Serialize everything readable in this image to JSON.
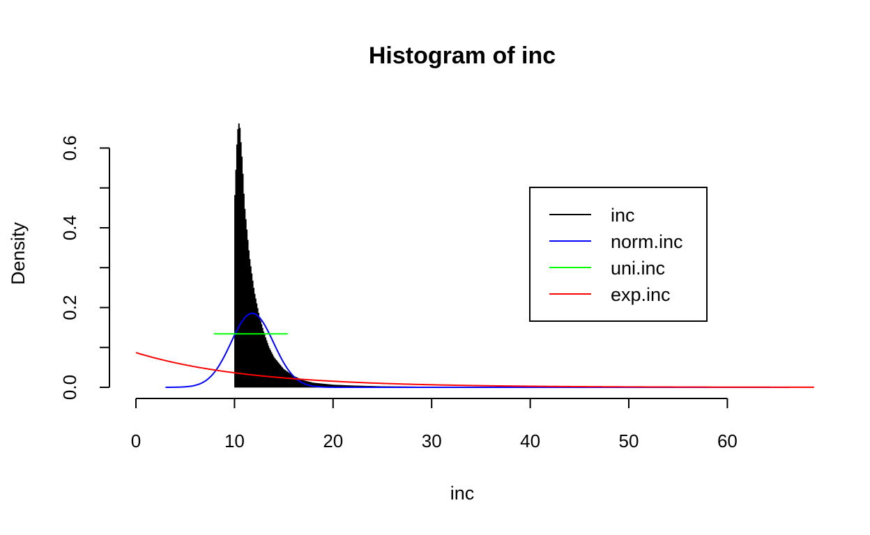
{
  "chart_data": {
    "type": "histogram",
    "title": "Histogram of inc",
    "xlabel": "inc",
    "ylabel": "Density",
    "xlim": [
      0,
      69
    ],
    "ylim": [
      0,
      0.67
    ],
    "x_ticks": [
      0,
      10,
      20,
      30,
      40,
      50,
      60
    ],
    "x_tick_labels": [
      "0",
      "10",
      "20",
      "30",
      "40",
      "50",
      "60"
    ],
    "y_ticks": [
      0,
      0.1,
      0.2,
      0.3,
      0.4,
      0.5,
      0.6
    ],
    "y_tick_labels": [
      "0.0",
      "",
      "0.2",
      "",
      "0.4",
      "",
      "0.6"
    ],
    "grid": false,
    "histogram": {
      "name": "inc",
      "color": "#000000",
      "bin_width": 0.1,
      "x_min": 10.0,
      "x_max": 66.3,
      "peak_x": 10.5,
      "peak_density": 0.668,
      "profile_x": [
        10.0,
        10.3,
        10.5,
        10.8,
        11.0,
        11.5,
        12.0,
        12.5,
        13.0,
        13.5,
        14.0,
        15.0,
        16.0,
        17.0,
        18.0,
        20.0,
        22.0,
        25.0,
        30.0,
        40.0,
        66.3
      ],
      "profile_density": [
        0.45,
        0.64,
        0.668,
        0.56,
        0.46,
        0.33,
        0.24,
        0.18,
        0.135,
        0.1,
        0.075,
        0.045,
        0.028,
        0.017,
        0.011,
        0.006,
        0.004,
        0.002,
        0.001,
        0.0005,
        0.0
      ]
    },
    "series": [
      {
        "name": "norm.inc",
        "type": "normal-density",
        "color": "#0000ff",
        "mean": 11.8,
        "sd": 2.15,
        "x_range": [
          3,
          66.3
        ]
      },
      {
        "name": "uni.inc",
        "type": "uniform-density",
        "color": "#00ff00",
        "x_range": [
          7.9,
          15.4
        ],
        "density": 0.134
      },
      {
        "name": "exp.inc",
        "type": "exponential-density",
        "color": "#ff0000",
        "rate": 0.087,
        "x_range": [
          0,
          69
        ]
      }
    ],
    "legend": {
      "placement": "top-right",
      "entries": [
        {
          "label": "inc",
          "color": "#000000"
        },
        {
          "label": "norm.inc",
          "color": "#0000ff"
        },
        {
          "label": "uni.inc",
          "color": "#00ff00"
        },
        {
          "label": "exp.inc",
          "color": "#ff0000"
        }
      ]
    }
  }
}
